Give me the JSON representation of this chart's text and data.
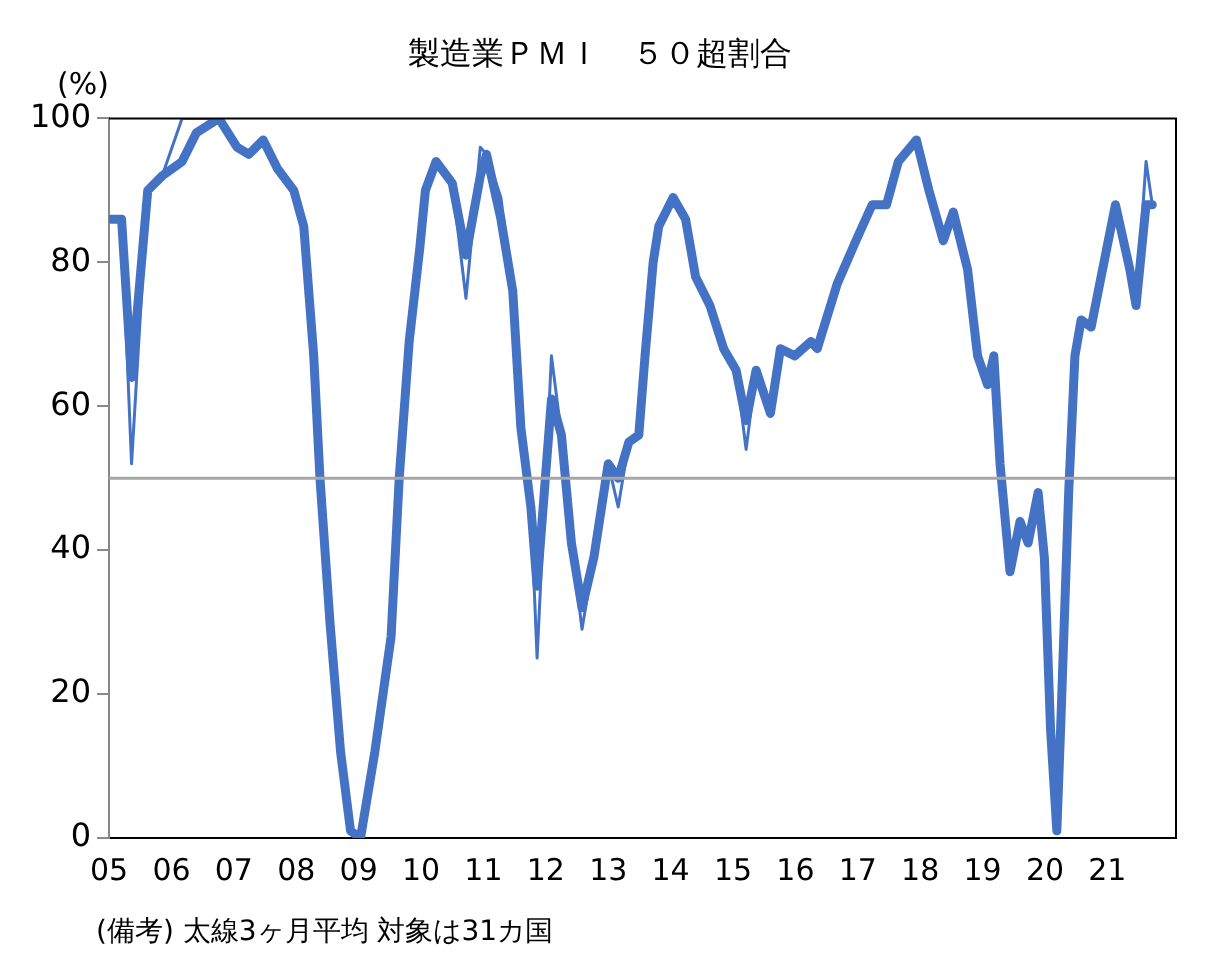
{
  "chart_data": {
    "type": "line",
    "title": "製造業ＰＭＩ　５０超割合",
    "ylabel": "(%)",
    "annotations": [
      "(備考) 太線3ヶ月平均 対象は31カ国"
    ],
    "x": [
      2005.03,
      2005.2,
      2005.36,
      2005.62,
      2005.85,
      2006.17,
      2006.4,
      2006.76,
      2007.05,
      2007.24,
      2007.47,
      2007.7,
      2007.96,
      2008.12,
      2008.28,
      2008.38,
      2008.54,
      2008.71,
      2008.87,
      2009.03,
      2009.26,
      2009.52,
      2009.65,
      2009.81,
      2009.98,
      2010.07,
      2010.24,
      2010.5,
      2010.72,
      2010.95,
      2011.05,
      2011.28,
      2011.47,
      2011.6,
      2011.76,
      2011.86,
      2012.09,
      2012.25,
      2012.41,
      2012.58,
      2012.77,
      2013.0,
      2013.16,
      2013.33,
      2013.49,
      2013.59,
      2013.72,
      2013.81,
      2014.04,
      2014.24,
      2014.4,
      2014.63,
      2014.85,
      2015.05,
      2015.21,
      2015.37,
      2015.6,
      2015.76,
      2015.99,
      2016.25,
      2016.35,
      2016.67,
      2016.97,
      2017.23,
      2017.46,
      2017.65,
      2017.94,
      2018.14,
      2018.37,
      2018.53,
      2018.76,
      2018.92,
      2019.08,
      2019.18,
      2019.28,
      2019.44,
      2019.6,
      2019.73,
      2019.89,
      2019.99,
      2020.09,
      2020.19,
      2020.25,
      2020.38,
      2020.48,
      2020.58,
      2020.74,
      2020.9,
      2021.13,
      2021.36,
      2021.46,
      2021.62,
      2021.72
    ],
    "series": [
      {
        "color": "#4472c4",
        "values": [
          86,
          86,
          52,
          90,
          92,
          100,
          100,
          100,
          96,
          95,
          97,
          93,
          90,
          85,
          67,
          50,
          30,
          12,
          1,
          0,
          12,
          28,
          50,
          69,
          82,
          90,
          94,
          91,
          75,
          96,
          95,
          89,
          76,
          57,
          46,
          25,
          67,
          56,
          41,
          29,
          39,
          52,
          46,
          55,
          56,
          67,
          80,
          85,
          89,
          86,
          78,
          74,
          68,
          65,
          54,
          65,
          59,
          68,
          67,
          69,
          68,
          77,
          83,
          88,
          88,
          94,
          97,
          90,
          83,
          87,
          79,
          67,
          63,
          67,
          52,
          37,
          44,
          41,
          48,
          39,
          15,
          1,
          15,
          48,
          67,
          72,
          71,
          78,
          88,
          79,
          74,
          94,
          88
        ]
      },
      {
        "color": "#4472c4",
        "values": [
          86,
          86,
          64,
          90,
          92,
          94,
          98,
          100,
          96,
          95,
          97,
          93,
          90,
          85,
          67,
          50,
          30,
          12,
          1,
          0,
          12,
          28,
          50,
          69,
          82,
          90,
          94,
          91,
          81,
          92,
          95,
          86,
          76,
          57,
          46,
          35,
          61,
          56,
          41,
          32,
          39,
          52,
          50,
          55,
          56,
          67,
          80,
          85,
          89,
          86,
          78,
          74,
          68,
          65,
          58,
          65,
          59,
          68,
          67,
          69,
          68,
          77,
          83,
          88,
          88,
          94,
          97,
          90,
          83,
          87,
          79,
          67,
          63,
          67,
          52,
          37,
          44,
          41,
          48,
          39,
          15,
          1,
          15,
          48,
          67,
          72,
          71,
          78,
          88,
          79,
          74,
          88,
          88
        ]
      }
    ],
    "xlim": [
      2005,
      2022.1
    ],
    "xticks": [
      {
        "value": 2005,
        "label": "05"
      },
      {
        "value": 2006,
        "label": "06"
      },
      {
        "value": 2007,
        "label": "07"
      },
      {
        "value": 2008,
        "label": "08"
      },
      {
        "value": 2009,
        "label": "09"
      },
      {
        "value": 2010,
        "label": "10"
      },
      {
        "value": 2011,
        "label": "11"
      },
      {
        "value": 2012,
        "label": "12"
      },
      {
        "value": 2013,
        "label": "13"
      },
      {
        "value": 2014,
        "label": "14"
      },
      {
        "value": 2015,
        "label": "15"
      },
      {
        "value": 2016,
        "label": "16"
      },
      {
        "value": 2017,
        "label": "17"
      },
      {
        "value": 2018,
        "label": "18"
      },
      {
        "value": 2019,
        "label": "19"
      },
      {
        "value": 2020,
        "label": "20"
      },
      {
        "value": 2021,
        "label": "21"
      }
    ],
    "ylim": [
      0,
      100
    ],
    "yticks": [
      0,
      20,
      40,
      60,
      80,
      100
    ],
    "ref_lines": [
      {
        "axis": "y",
        "value": 50,
        "color": "#a6a6a6"
      }
    ],
    "grid": false,
    "legend": false,
    "marker": "none",
    "line_style": "solid"
  }
}
